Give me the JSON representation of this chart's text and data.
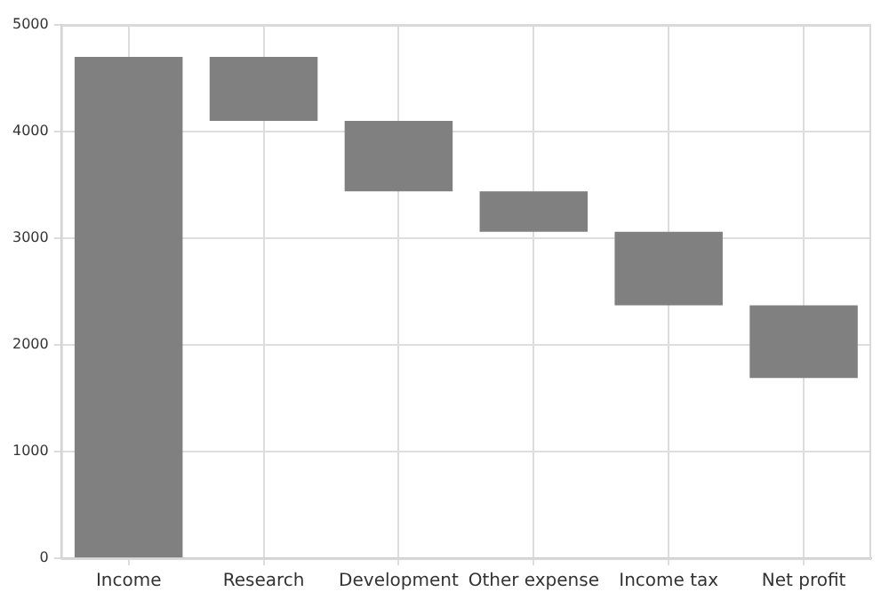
{
  "chart_data": {
    "type": "bar",
    "categories": [
      "Income",
      "Research",
      "Development",
      "Other expense",
      "Income tax",
      "Net profit"
    ],
    "values": [
      4700,
      600,
      660,
      380,
      690,
      680
    ],
    "base": [
      0,
      4100,
      3440,
      3060,
      2370,
      1690
    ],
    "color": "#808080",
    "ylim": [
      0,
      5000
    ],
    "yticks": [
      0,
      1000,
      2000,
      3000,
      4000,
      5000
    ],
    "grid": true,
    "legend": false
  }
}
